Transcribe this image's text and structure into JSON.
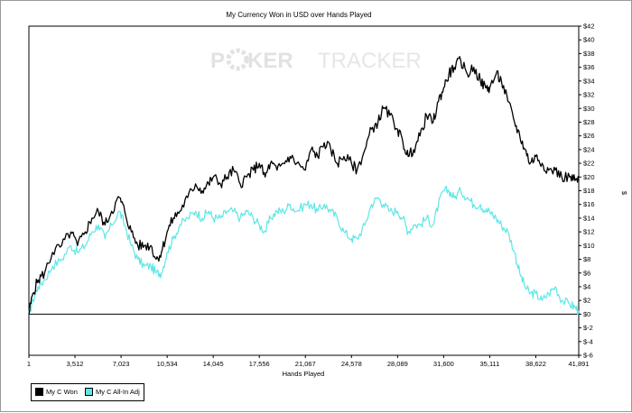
{
  "watermark": {
    "text_part1": "P",
    "text_part2": "KER",
    "text_part3": "TRACKER"
  },
  "legend": {
    "series_0": "My C Won",
    "series_1": "My C All-In Adj"
  },
  "colors": {
    "won": "#000000",
    "adj": "#5fe6e6",
    "watermark": "#e4e4e4"
  },
  "chart_data": {
    "type": "line",
    "title": "My Currency Won in USD over Hands Played",
    "xlabel": "Hands Played",
    "ylabel": "$",
    "x_ticks": [
      1,
      3512,
      7023,
      10534,
      14045,
      17556,
      21067,
      24578,
      28089,
      31600,
      35111,
      38622,
      41891
    ],
    "x_tick_labels": [
      "1",
      "3,512",
      "7,023",
      "10,534",
      "14,045",
      "17,556",
      "21,067",
      "24,578",
      "28,089",
      "31,600",
      "35,111",
      "38,622",
      "41,891"
    ],
    "xlim": [
      1,
      41891
    ],
    "y_ticks": [
      -6,
      -4,
      -2,
      0,
      2,
      4,
      6,
      8,
      10,
      12,
      14,
      16,
      18,
      20,
      22,
      24,
      26,
      28,
      30,
      32,
      34,
      36,
      38,
      40,
      42
    ],
    "y_tick_labels": [
      "$-6",
      "$-4",
      "$-2",
      "$0",
      "$2",
      "$4",
      "$6",
      "$8",
      "$10",
      "$12",
      "$14",
      "$16",
      "$18",
      "$20",
      "$22",
      "$24",
      "$26",
      "$28",
      "$30",
      "$32",
      "$34",
      "$36",
      "$38",
      "$40",
      "$42"
    ],
    "ylim": [
      -6,
      42
    ],
    "grid": false,
    "legend_position": "bottom-left",
    "series": [
      {
        "name": "My C Won",
        "points": [
          [
            1,
            0
          ],
          [
            300,
            3
          ],
          [
            700,
            5
          ],
          [
            1200,
            6
          ],
          [
            1800,
            9
          ],
          [
            2500,
            10
          ],
          [
            3200,
            12
          ],
          [
            3700,
            10
          ],
          [
            4300,
            12
          ],
          [
            4800,
            14
          ],
          [
            5300,
            15
          ],
          [
            5800,
            13
          ],
          [
            6300,
            15
          ],
          [
            6900,
            17
          ],
          [
            7300,
            15
          ],
          [
            7800,
            12
          ],
          [
            8300,
            10
          ],
          [
            8800,
            10
          ],
          [
            9300,
            10
          ],
          [
            9700,
            8
          ],
          [
            10100,
            9
          ],
          [
            10534,
            12
          ],
          [
            11000,
            14
          ],
          [
            11500,
            15
          ],
          [
            12100,
            17
          ],
          [
            12700,
            19
          ],
          [
            13200,
            18
          ],
          [
            13700,
            19
          ],
          [
            14045,
            20
          ],
          [
            14600,
            19
          ],
          [
            15100,
            20
          ],
          [
            15600,
            21
          ],
          [
            16100,
            19
          ],
          [
            16600,
            20
          ],
          [
            17100,
            21
          ],
          [
            17556,
            22
          ],
          [
            18000,
            20
          ],
          [
            18400,
            22
          ],
          [
            18900,
            21
          ],
          [
            19400,
            22
          ],
          [
            19900,
            23
          ],
          [
            20400,
            22
          ],
          [
            21067,
            21
          ],
          [
            21500,
            24
          ],
          [
            22000,
            23
          ],
          [
            22500,
            25
          ],
          [
            23000,
            24
          ],
          [
            23500,
            22
          ],
          [
            24000,
            23
          ],
          [
            24578,
            22
          ],
          [
            25000,
            21
          ],
          [
            25600,
            24
          ],
          [
            26100,
            27
          ],
          [
            26600,
            28
          ],
          [
            27000,
            30
          ],
          [
            27500,
            29
          ],
          [
            28089,
            27
          ],
          [
            28500,
            25
          ],
          [
            28900,
            23
          ],
          [
            29300,
            24
          ],
          [
            29800,
            26
          ],
          [
            30300,
            29
          ],
          [
            30800,
            28
          ],
          [
            31200,
            31
          ],
          [
            31600,
            33
          ],
          [
            32000,
            35
          ],
          [
            32400,
            36
          ],
          [
            32900,
            37
          ],
          [
            33400,
            35
          ],
          [
            33900,
            36
          ],
          [
            34400,
            34
          ],
          [
            34800,
            33
          ],
          [
            35111,
            33
          ],
          [
            35600,
            35
          ],
          [
            36000,
            34
          ],
          [
            36500,
            31
          ],
          [
            37000,
            28
          ],
          [
            37400,
            26
          ],
          [
            37800,
            24
          ],
          [
            38200,
            22
          ],
          [
            38622,
            23
          ],
          [
            39100,
            22
          ],
          [
            39600,
            21
          ],
          [
            40100,
            21
          ],
          [
            40600,
            20
          ],
          [
            41200,
            20
          ],
          [
            41600,
            19.5
          ],
          [
            41891,
            19.5
          ]
        ]
      },
      {
        "name": "My C All-In Adj",
        "points": [
          [
            1,
            0
          ],
          [
            300,
            2
          ],
          [
            700,
            4
          ],
          [
            1200,
            5
          ],
          [
            1800,
            7
          ],
          [
            2500,
            8
          ],
          [
            3200,
            10
          ],
          [
            3700,
            9
          ],
          [
            4300,
            10
          ],
          [
            4800,
            12
          ],
          [
            5300,
            13
          ],
          [
            5800,
            11
          ],
          [
            6300,
            13
          ],
          [
            6900,
            15
          ],
          [
            7300,
            13
          ],
          [
            7800,
            10
          ],
          [
            8300,
            8
          ],
          [
            8800,
            7
          ],
          [
            9300,
            7
          ],
          [
            9700,
            6
          ],
          [
            10100,
            6
          ],
          [
            10534,
            9
          ],
          [
            11000,
            11
          ],
          [
            11500,
            13
          ],
          [
            12100,
            14
          ],
          [
            12700,
            15
          ],
          [
            13200,
            14
          ],
          [
            13700,
            15
          ],
          [
            14045,
            14
          ],
          [
            14600,
            14
          ],
          [
            15100,
            15
          ],
          [
            15600,
            15
          ],
          [
            16100,
            14
          ],
          [
            16600,
            15
          ],
          [
            17100,
            14
          ],
          [
            17556,
            13
          ],
          [
            18000,
            12
          ],
          [
            18400,
            14
          ],
          [
            18900,
            15
          ],
          [
            19400,
            15
          ],
          [
            19900,
            16
          ],
          [
            20400,
            15
          ],
          [
            21067,
            16
          ],
          [
            21500,
            16
          ],
          [
            22000,
            15
          ],
          [
            22500,
            16
          ],
          [
            23000,
            15
          ],
          [
            23500,
            14
          ],
          [
            24000,
            12
          ],
          [
            24578,
            11
          ],
          [
            25000,
            11
          ],
          [
            25600,
            13
          ],
          [
            26100,
            16
          ],
          [
            26600,
            17
          ],
          [
            27000,
            16
          ],
          [
            27500,
            15
          ],
          [
            28089,
            15
          ],
          [
            28500,
            14
          ],
          [
            28900,
            12
          ],
          [
            29300,
            13
          ],
          [
            29800,
            13
          ],
          [
            30300,
            14
          ],
          [
            30800,
            13
          ],
          [
            31200,
            16
          ],
          [
            31600,
            18
          ],
          [
            32000,
            18
          ],
          [
            32400,
            17
          ],
          [
            32900,
            18
          ],
          [
            33400,
            17
          ],
          [
            33900,
            16
          ],
          [
            34400,
            16
          ],
          [
            34800,
            15
          ],
          [
            35111,
            15
          ],
          [
            35600,
            14
          ],
          [
            36000,
            13
          ],
          [
            36500,
            12
          ],
          [
            37000,
            9
          ],
          [
            37400,
            6
          ],
          [
            37800,
            4
          ],
          [
            38200,
            3
          ],
          [
            38622,
            3
          ],
          [
            39100,
            2
          ],
          [
            39600,
            3
          ],
          [
            40100,
            4
          ],
          [
            40600,
            2
          ],
          [
            41200,
            1.5
          ],
          [
            41600,
            1
          ],
          [
            41891,
            0.5
          ]
        ]
      }
    ]
  }
}
